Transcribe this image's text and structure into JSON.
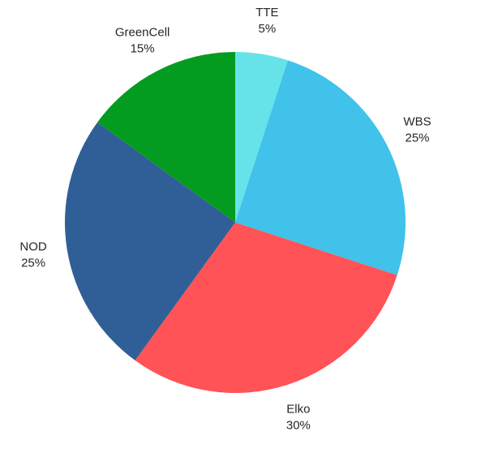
{
  "chart_data": {
    "type": "pie",
    "title": "",
    "start_angle_deg": 0,
    "direction": "clockwise",
    "slices": [
      {
        "label": "TTE",
        "value": 5,
        "display": "5%",
        "color": "#66e3e8"
      },
      {
        "label": "WBS",
        "value": 25,
        "display": "25%",
        "color": "#40c2ea"
      },
      {
        "label": "Elko",
        "value": 30,
        "display": "30%",
        "color": "#ff5357"
      },
      {
        "label": "NOD",
        "value": 25,
        "display": "25%",
        "color": "#2f5f96"
      },
      {
        "label": "GreenCell",
        "value": 15,
        "display": "15%",
        "color": "#049c20"
      }
    ]
  }
}
